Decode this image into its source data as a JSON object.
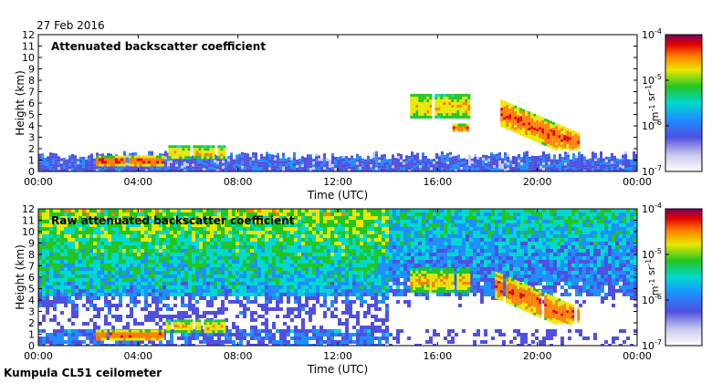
{
  "header": {
    "date": "27 Feb 2016"
  },
  "footer": {
    "instrument": "Kumpula CL51 ceilometer"
  },
  "colors": {
    "background": "#ffffff",
    "colormap": [
      "#ffffff",
      "#c8c8ee",
      "#5050e0",
      "#1e8fff",
      "#00d8d0",
      "#22c522",
      "#e8e800",
      "#ff8000",
      "#e00000",
      "#7a0060"
    ]
  },
  "chart_data": [
    {
      "type": "heatmap",
      "title": "Attenuated backscatter coefficient",
      "xlabel": "Time (UTC)",
      "ylabel": "Height (km)",
      "x_ticks": [
        "00:00",
        "04:00",
        "08:00",
        "12:00",
        "16:00",
        "20:00",
        "00:00"
      ],
      "y_ticks": [
        "0",
        "1",
        "2",
        "3",
        "4",
        "5",
        "6",
        "7",
        "8",
        "9",
        "10",
        "11",
        "12"
      ],
      "xlim_hours": [
        0,
        24
      ],
      "ylim_km": [
        0,
        12
      ],
      "colorbar": {
        "label": "m-1 sr-1",
        "scale": "log",
        "tick_labels": [
          "10-7",
          "10-6",
          "10-5",
          "10-4"
        ],
        "ticks_exp": [
          -7,
          -6,
          -5,
          -4
        ]
      },
      "features": [
        {
          "desc": "boundary layer",
          "t0": 0,
          "t1": 24,
          "h0": 0,
          "h1": 1.5,
          "level": 2
        },
        {
          "desc": "low cloud",
          "t0": 2.3,
          "t1": 5.0,
          "h0": 0.6,
          "h1": 1.4,
          "level": 7
        },
        {
          "desc": "low cloud",
          "t0": 5.1,
          "t1": 7.5,
          "h0": 1.2,
          "h1": 2.3,
          "level": 6
        },
        {
          "desc": "cloud",
          "t0": 14.9,
          "t1": 17.3,
          "h0": 4.8,
          "h1": 6.8,
          "level": 6
        },
        {
          "desc": "cloud",
          "t0": 16.6,
          "t1": 17.2,
          "h0": 3.6,
          "h1": 4.2,
          "level": 7
        },
        {
          "desc": "descending cloud",
          "t0": 18.3,
          "t1": 21.7,
          "h0": 2.0,
          "h1": 6.5,
          "level": 7
        }
      ]
    },
    {
      "type": "heatmap",
      "title": "Raw attenuated backscatter coefficient",
      "xlabel": "Time (UTC)",
      "ylabel": "Height (km)",
      "x_ticks": [
        "00:00",
        "04:00",
        "08:00",
        "12:00",
        "16:00",
        "20:00",
        "00:00"
      ],
      "y_ticks": [
        "0",
        "1",
        "2",
        "3",
        "4",
        "5",
        "6",
        "7",
        "8",
        "9",
        "10",
        "11",
        "12"
      ],
      "xlim_hours": [
        0,
        24
      ],
      "ylim_km": [
        0,
        12
      ],
      "colorbar": {
        "label": "m-1 sr-1",
        "scale": "log",
        "tick_labels": [
          "10-7",
          "10-6",
          "10-5",
          "10-4"
        ],
        "ticks_exp": [
          -7,
          -6,
          -5,
          -4
        ]
      },
      "features": [
        {
          "desc": "noise background",
          "t0": 0,
          "t1": 24,
          "h0": 0,
          "h1": 12,
          "level": 4
        },
        {
          "desc": "low cloud",
          "t0": 2.3,
          "t1": 5.0,
          "h0": 0.6,
          "h1": 1.4,
          "level": 7
        },
        {
          "desc": "low cloud",
          "t0": 5.1,
          "t1": 7.5,
          "h0": 1.2,
          "h1": 2.3,
          "level": 6
        },
        {
          "desc": "cloud",
          "t0": 14.9,
          "t1": 17.3,
          "h0": 4.8,
          "h1": 6.8,
          "level": 6
        },
        {
          "desc": "descending cloud",
          "t0": 18.3,
          "t1": 21.7,
          "h0": 2.0,
          "h1": 6.5,
          "level": 7
        }
      ]
    }
  ]
}
